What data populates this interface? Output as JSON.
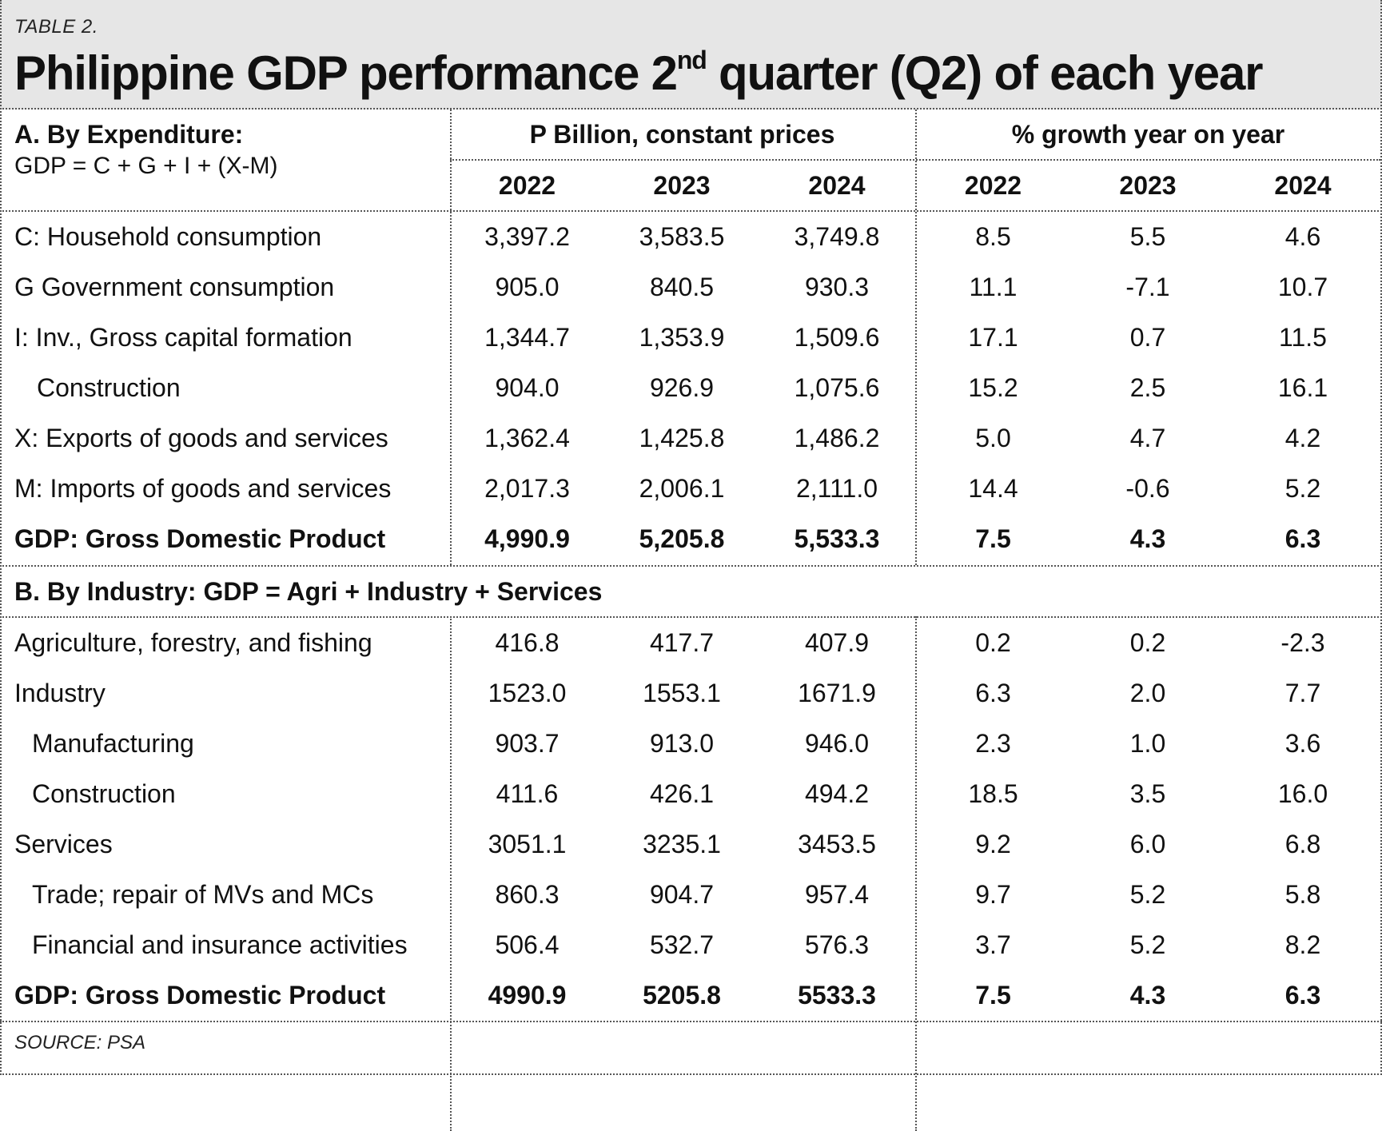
{
  "header": {
    "table_label": "TABLE 2.",
    "title_part1": "Philippine GDP performance 2",
    "title_sup": "nd",
    "title_part2": " quarter (Q2) of each year"
  },
  "section_a": {
    "title": "A. By Expenditure:",
    "formula": "GDP = C + G + I + (X-M)",
    "group1": "P Billion, constant prices",
    "group2": "% growth year on year",
    "years": [
      "2022",
      "2023",
      "2024",
      "2022",
      "2023",
      "2024"
    ],
    "rows": [
      {
        "label": "C: Household consumption",
        "values": [
          "3,397.2",
          "3,583.5",
          "3,749.8",
          "8.5",
          "5.5",
          "4.6"
        ]
      },
      {
        "label": "G Government consumption",
        "values": [
          "905.0",
          "840.5",
          "930.3",
          "11.1",
          "-7.1",
          "10.7"
        ]
      },
      {
        "label": "I: Inv., Gross capital formation",
        "values": [
          "1,344.7",
          "1,353.9",
          "1,509.6",
          "17.1",
          "0.7",
          "11.5"
        ]
      },
      {
        "label": "Construction",
        "values": [
          "904.0",
          "926.9",
          "1,075.6",
          "15.2",
          "2.5",
          "16.1"
        ]
      },
      {
        "label": "X: Exports of goods and services",
        "values": [
          "1,362.4",
          "1,425.8",
          "1,486.2",
          "5.0",
          "4.7",
          "4.2"
        ]
      },
      {
        "label": "M: Imports of goods and services",
        "values": [
          "2,017.3",
          "2,006.1",
          "2,111.0",
          "14.4",
          "-0.6",
          "5.2"
        ]
      }
    ],
    "total": {
      "label": "GDP: Gross Domestic Product",
      "values": [
        "4,990.9",
        "5,205.8",
        "5,533.3",
        "7.5",
        "4.3",
        "6.3"
      ]
    }
  },
  "section_b": {
    "title": "B. By Industry: GDP = Agri + Industry + Services",
    "rows": [
      {
        "label": "Agriculture, forestry, and fishing",
        "values": [
          "416.8",
          "417.7",
          "407.9",
          "0.2",
          "0.2",
          "-2.3"
        ]
      },
      {
        "label": "Industry",
        "values": [
          "1523.0",
          "1553.1",
          "1671.9",
          "6.3",
          "2.0",
          "7.7"
        ]
      },
      {
        "label": "Manufacturing",
        "values": [
          "903.7",
          "913.0",
          "946.0",
          "2.3",
          "1.0",
          "3.6"
        ]
      },
      {
        "label": "Construction",
        "values": [
          "411.6",
          "426.1",
          "494.2",
          "18.5",
          "3.5",
          "16.0"
        ]
      },
      {
        "label": "Services",
        "values": [
          "3051.1",
          "3235.1",
          "3453.5",
          "9.2",
          "6.0",
          "6.8"
        ]
      },
      {
        "label": "Trade; repair of MVs and MCs",
        "values": [
          "860.3",
          "904.7",
          "957.4",
          "9.7",
          "5.2",
          "5.8"
        ]
      },
      {
        "label": "Financial and insurance activities",
        "values": [
          "506.4",
          "532.7",
          "576.3",
          "3.7",
          "5.2",
          "8.2"
        ]
      }
    ],
    "total": {
      "label": "GDP: Gross Domestic Product",
      "values": [
        "4990.9",
        "5205.8",
        "5533.3",
        "7.5",
        "4.3",
        "6.3"
      ]
    }
  },
  "source": "SOURCE: PSA"
}
